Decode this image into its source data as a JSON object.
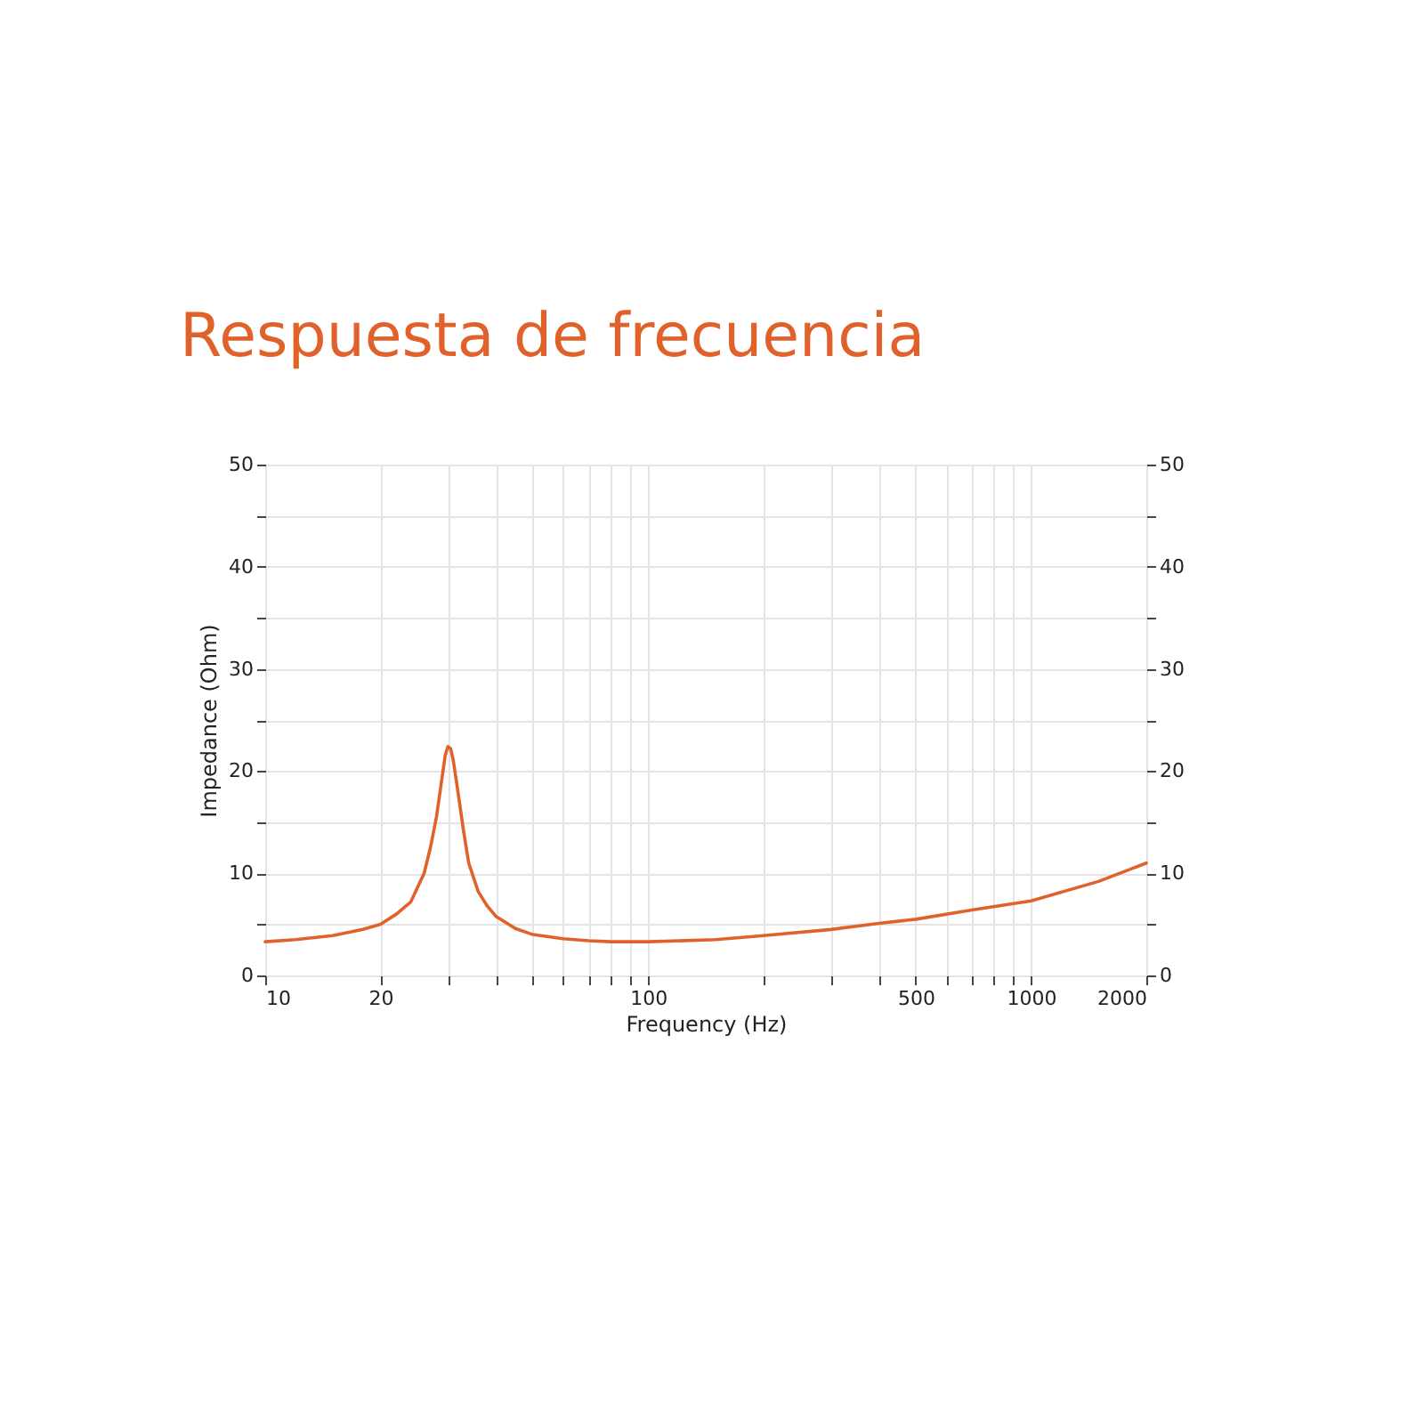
{
  "chart_data": {
    "type": "line",
    "title": "Respuesta de frecuencia",
    "xlabel": "Frequency (Hz)",
    "ylabel": "Impedance (Ohm)",
    "log": "x",
    "grid": true,
    "xlim": [
      10,
      2000
    ],
    "ylim": [
      0,
      50
    ],
    "y2lim": [
      0,
      50
    ],
    "xticks": [
      10,
      20,
      {
        "value": 30,
        "label": null
      },
      {
        "value": 40,
        "label": null
      },
      {
        "value": 50,
        "label": null
      },
      {
        "value": 60,
        "label": null
      },
      {
        "value": 70,
        "label": null
      },
      {
        "value": 80,
        "label": null
      },
      {
        "value": 90,
        "label": null
      },
      100,
      {
        "value": 200,
        "label": null
      },
      {
        "value": 300,
        "label": null
      },
      {
        "value": 400,
        "label": null
      },
      500,
      {
        "value": 600,
        "label": null
      },
      {
        "value": 700,
        "label": null
      },
      {
        "value": 800,
        "label": null
      },
      {
        "value": 900,
        "label": null
      },
      1000,
      2000
    ],
    "yticks": [
      0,
      {
        "value": 5,
        "label": null
      },
      10,
      {
        "value": 15,
        "label": null
      },
      20,
      {
        "value": 25,
        "label": null
      },
      30,
      {
        "value": 35,
        "label": null
      },
      40,
      {
        "value": 45,
        "label": null
      },
      50
    ],
    "y2ticks": [
      0,
      {
        "value": 5,
        "label": null
      },
      10,
      {
        "value": 15,
        "label": null
      },
      20,
      {
        "value": 25,
        "label": null
      },
      30,
      {
        "value": 35,
        "label": null
      },
      40,
      {
        "value": 45,
        "label": null
      },
      50
    ],
    "series": [
      {
        "color": "#e0622a",
        "x": [
          10,
          12,
          15,
          18,
          20,
          22,
          24,
          26,
          27,
          28,
          29,
          29.5,
          30,
          30.5,
          31,
          32,
          33,
          34,
          36,
          38,
          40,
          45,
          50,
          60,
          70,
          80,
          100,
          150,
          200,
          300,
          400,
          500,
          700,
          1000,
          1500,
          2000
        ],
        "values": [
          3.3,
          3.5,
          3.9,
          4.5,
          5.0,
          6.0,
          7.2,
          10,
          12.5,
          15.5,
          19.5,
          21.5,
          22.4,
          22.2,
          21,
          17.5,
          14,
          11,
          8.2,
          6.8,
          5.8,
          4.6,
          4.0,
          3.6,
          3.4,
          3.3,
          3.3,
          3.5,
          3.9,
          4.5,
          5.1,
          5.5,
          6.4,
          7.3,
          9.2,
          11.0
        ]
      }
    ]
  }
}
